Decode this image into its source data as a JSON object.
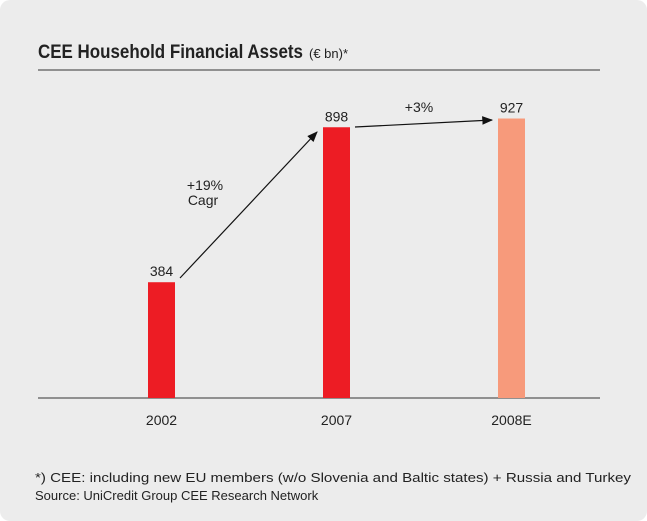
{
  "chart_data": {
    "type": "bar",
    "title": "CEE Household Financial Assets",
    "subtitle": "(€ bn)*",
    "categories": [
      "2002",
      "2007",
      "2008E"
    ],
    "values": [
      384,
      898,
      927
    ],
    "colors": [
      "#ed1c24",
      "#ed1c24",
      "#f79a7b"
    ],
    "annotations": [
      "+19%",
      "Cagr",
      "+3%"
    ],
    "footnotes": [
      "*) CEE: including new EU members (w/o Slovenia and Baltic states) + Russia and Turkey",
      "Source: UniCredit Group CEE Research Network"
    ]
  }
}
